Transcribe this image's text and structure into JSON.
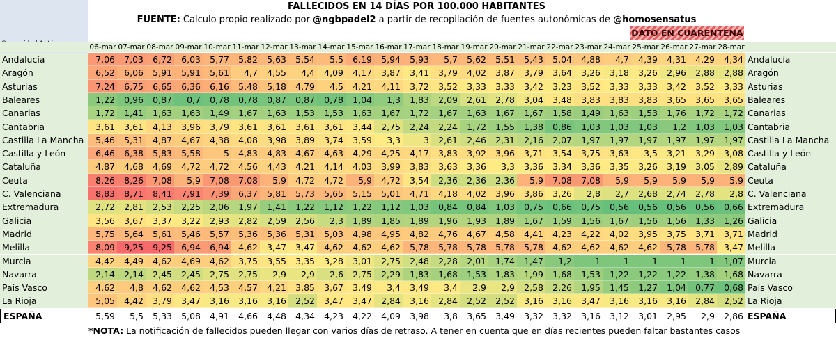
{
  "header": {
    "title": "FALLECIDOS EN 14 DÍAS POR 100.000 HABITANTES",
    "source_label": "FUENTE:",
    "source_text1": "Calculo propio realizado por",
    "source_author": "@ngbpadel2",
    "source_text2": "a partir de recopilación de fuentes autonómicas de",
    "source_org": "@homosensatus",
    "quarantine": "DATO EN CUARENTENA"
  },
  "table": {
    "row_header": "Comunidad Autónoma",
    "columns": [
      "06-mar",
      "07-mar",
      "08-mar",
      "09-mar",
      "10-mar",
      "11-mar",
      "12-mar",
      "13-mar",
      "14-mar",
      "15-mar",
      "16-mar",
      "17-mar",
      "18-mar",
      "19-mar",
      "20-mar",
      "21-mar",
      "22-mar",
      "23-mar",
      "24-mar",
      "25-mar",
      "26-mar",
      "27-mar",
      "28-mar"
    ],
    "rows": [
      {
        "name": "Andalucía",
        "values": [
          "7,06",
          "7,03",
          "6,72",
          "6,03",
          "5,77",
          "5,82",
          "5,63",
          "5,54",
          "5,5",
          "6,19",
          "5,94",
          "5,93",
          "5,7",
          "5,62",
          "5,51",
          "5,43",
          "5,04",
          "4,88",
          "4,7",
          "4,39",
          "4,31",
          "4,29",
          "4,34"
        ]
      },
      {
        "name": "Aragón",
        "values": [
          "6,52",
          "6,06",
          "5,91",
          "5,91",
          "5,61",
          "4,7",
          "4,55",
          "4,4",
          "4,09",
          "4,17",
          "3,87",
          "3,41",
          "3,79",
          "4,02",
          "3,87",
          "3,79",
          "3,64",
          "3,26",
          "3,18",
          "3,26",
          "2,96",
          "2,88",
          "2,88"
        ]
      },
      {
        "name": "Asturias",
        "values": [
          "7,24",
          "6,75",
          "6,65",
          "6,36",
          "6,16",
          "5,48",
          "5,18",
          "4,79",
          "4,5",
          "4,21",
          "4,11",
          "3,72",
          "3,52",
          "3,33",
          "3,33",
          "3,42",
          "3,23",
          "3,52",
          "3,33",
          "3,33",
          "3,42",
          "3,52",
          "3,33"
        ]
      },
      {
        "name": "Baleares",
        "values": [
          "1,22",
          "0,96",
          "0,87",
          "0,7",
          "0,78",
          "0,78",
          "0,87",
          "0,87",
          "0,78",
          "1,04",
          "1,3",
          "1,83",
          "2,09",
          "2,61",
          "2,78",
          "3,04",
          "3,48",
          "3,83",
          "3,83",
          "3,83",
          "3,65",
          "3,65",
          "3,65"
        ]
      },
      {
        "name": "Canarias",
        "values": [
          "1,72",
          "1,41",
          "1,63",
          "1,63",
          "1,49",
          "1,67",
          "1,63",
          "1,53",
          "1,53",
          "1,63",
          "1,67",
          "1,72",
          "1,67",
          "1,63",
          "1,67",
          "1,67",
          "1,58",
          "1,49",
          "1,63",
          "1,53",
          "1,76",
          "1,72",
          "1,72"
        ]
      },
      {
        "name": "Cantabria",
        "values": [
          "3,61",
          "3,61",
          "4,13",
          "3,96",
          "3,79",
          "3,61",
          "3,61",
          "3,61",
          "3,61",
          "3,44",
          "2,75",
          "2,24",
          "2,24",
          "1,72",
          "1,55",
          "1,38",
          "0,86",
          "1,03",
          "1,03",
          "1,03",
          "1,2",
          "1,03",
          "1,03"
        ]
      },
      {
        "name": "Castilla La Mancha",
        "values": [
          "5,46",
          "5,31",
          "4,87",
          "4,67",
          "4,38",
          "4,08",
          "3,98",
          "3,89",
          "3,74",
          "3,59",
          "3,3",
          "3",
          "2,61",
          "2,46",
          "2,31",
          "2,16",
          "2,07",
          "1,97",
          "1,97",
          "1,97",
          "1,97",
          "1,97",
          "1,97"
        ]
      },
      {
        "name": "Castilla y León",
        "values": [
          "6,46",
          "6,38",
          "5,83",
          "5,58",
          "5",
          "4,83",
          "4,83",
          "4,67",
          "4,63",
          "4,29",
          "4,25",
          "4,17",
          "3,83",
          "3,92",
          "3,96",
          "3,71",
          "3,54",
          "3,75",
          "3,63",
          "3,5",
          "3,21",
          "3,29",
          "3,08"
        ]
      },
      {
        "name": "Cataluña",
        "values": [
          "4,87",
          "4,68",
          "4,69",
          "4,72",
          "4,72",
          "4,56",
          "4,43",
          "4,21",
          "4,14",
          "4,03",
          "3,99",
          "3,83",
          "3,63",
          "3,36",
          "3,3",
          "3,36",
          "3,34",
          "3,36",
          "3,35",
          "3,26",
          "3,19",
          "3,05",
          "2,89"
        ]
      },
      {
        "name": "Ceuta",
        "values": [
          "8,26",
          "8,26",
          "7,08",
          "5,9",
          "7,08",
          "7,08",
          "5,9",
          "4,72",
          "4,72",
          "5,9",
          "4,72",
          "3,54",
          "2,36",
          "2,36",
          "2,36",
          "5,9",
          "7,08",
          "7,08",
          "5,9",
          "5,9",
          "5,9",
          "5,9",
          "5,9"
        ]
      },
      {
        "name": "C. Valenciana",
        "values": [
          "8,83",
          "8,71",
          "8,41",
          "7,91",
          "7,39",
          "6,37",
          "5,81",
          "5,73",
          "5,65",
          "5,15",
          "5,01",
          "4,71",
          "4,18",
          "4,02",
          "3,96",
          "3,86",
          "3,26",
          "2,8",
          "2,7",
          "2,68",
          "2,74",
          "2,78",
          "2,8"
        ]
      },
      {
        "name": "Extremadura",
        "values": [
          "2,72",
          "2,81",
          "2,53",
          "2,25",
          "2,06",
          "1,97",
          "1,41",
          "1,22",
          "1,12",
          "1,22",
          "1,12",
          "1,03",
          "0,84",
          "0,84",
          "1,03",
          "0,75",
          "0,66",
          "0,75",
          "0,56",
          "0,56",
          "0,56",
          "0,56",
          "0,66"
        ]
      },
      {
        "name": "Galicia",
        "values": [
          "3,56",
          "3,67",
          "3,37",
          "3,22",
          "2,93",
          "2,82",
          "2,59",
          "2,56",
          "2,3",
          "1,89",
          "1,85",
          "1,89",
          "1,96",
          "1,93",
          "1,89",
          "1,67",
          "1,59",
          "1,56",
          "1,67",
          "1,56",
          "1,56",
          "1,33",
          "1,26"
        ]
      },
      {
        "name": "Madrid",
        "values": [
          "5,75",
          "5,64",
          "5,61",
          "5,46",
          "5,57",
          "5,36",
          "5,36",
          "5,31",
          "5,03",
          "4,98",
          "4,95",
          "4,82",
          "4,76",
          "4,67",
          "4,58",
          "4,41",
          "4,23",
          "4,22",
          "4,02",
          "3,95",
          "3,75",
          "3,71",
          "3,71"
        ]
      },
      {
        "name": "Melilla",
        "values": [
          "8,09",
          "9,25",
          "9,25",
          "6,94",
          "6,94",
          "4,62",
          "3,47",
          "3,47",
          "4,62",
          "4,62",
          "4,62",
          "5,78",
          "5,78",
          "5,78",
          "5,78",
          "5,78",
          "4,62",
          "4,62",
          "4,62",
          "4,62",
          "5,78",
          "5,78",
          "3,47"
        ]
      },
      {
        "name": "Murcia",
        "values": [
          "4,42",
          "4,49",
          "4,62",
          "4,69",
          "4,62",
          "3,75",
          "3,55",
          "3,35",
          "3,28",
          "3,01",
          "2,75",
          "2,48",
          "2,28",
          "2,01",
          "1,74",
          "1,47",
          "1,2",
          "1",
          "1",
          "1",
          "1",
          "1",
          "1,07"
        ]
      },
      {
        "name": "Navarra",
        "values": [
          "2,14",
          "2,14",
          "2,45",
          "2,45",
          "2,75",
          "2,75",
          "2,9",
          "2,9",
          "2,6",
          "2,75",
          "2,29",
          "1,83",
          "1,68",
          "1,53",
          "1,83",
          "1,99",
          "1,68",
          "1,53",
          "1,22",
          "1,22",
          "1,22",
          "1,38",
          "1,68"
        ]
      },
      {
        "name": "País Vasco",
        "values": [
          "4,62",
          "4,8",
          "4,62",
          "4,62",
          "4,53",
          "4,57",
          "4,21",
          "3,85",
          "3,67",
          "3,49",
          "3,4",
          "3,49",
          "3,4",
          "2,9",
          "2,9",
          "2,58",
          "2,26",
          "1,95",
          "1,45",
          "1,27",
          "1,04",
          "0,77",
          "0,68"
        ]
      },
      {
        "name": "La Rioja",
        "values": [
          "5,05",
          "4,42",
          "3,79",
          "3,47",
          "3,16",
          "3,16",
          "3,16",
          "2,52",
          "3,47",
          "3,47",
          "2,84",
          "3,16",
          "2,84",
          "2,52",
          "2,52",
          "3,16",
          "3,16",
          "3,47",
          "3,16",
          "3,16",
          "3,16",
          "2,84",
          "2,52"
        ]
      }
    ],
    "total": {
      "name": "ESPAÑA",
      "values": [
        "5,59",
        "5,5",
        "5,33",
        "5,08",
        "4,91",
        "4,66",
        "4,48",
        "4,34",
        "4,23",
        "4,22",
        "4,09",
        "3,98",
        "3,8",
        "3,65",
        "3,49",
        "3,32",
        "3,32",
        "3,16",
        "3,12",
        "3,01",
        "2,95",
        "2,9",
        "2,86"
      ]
    }
  },
  "footer": {
    "note_label": "*NOTA:",
    "note_text": "La notificación de fallecidos pueden llegar con varios días de retraso. A tener en cuenta que en días recientes pueden faltar bastantes casos"
  }
}
